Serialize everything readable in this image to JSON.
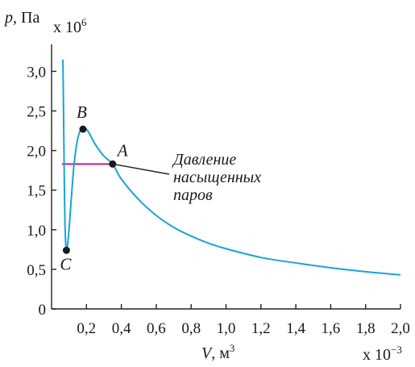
{
  "chart_data": {
    "type": "line",
    "y_label_var": "p",
    "y_label_unit": "Па",
    "y_multiplier_base": "x 10",
    "y_multiplier_exp": "6",
    "x_label_var": "V",
    "x_label_unit": "м",
    "x_label_unit_exp": "3",
    "x_multiplier_base": "x 10",
    "x_multiplier_exp": "−3",
    "xlim": [
      0,
      2.0
    ],
    "ylim": [
      0,
      3.3
    ],
    "x_ticks": [
      {
        "value": 0.2,
        "label": "0,2"
      },
      {
        "value": 0.4,
        "label": "0,4"
      },
      {
        "value": 0.6,
        "label": "0,6"
      },
      {
        "value": 0.8,
        "label": "0,8"
      },
      {
        "value": 1.0,
        "label": "1,0"
      },
      {
        "value": 1.2,
        "label": "1,2"
      },
      {
        "value": 1.4,
        "label": "1,4"
      },
      {
        "value": 1.6,
        "label": "1,6"
      },
      {
        "value": 1.8,
        "label": "1,8"
      },
      {
        "value": 2.0,
        "label": "2,0"
      }
    ],
    "y_ticks": [
      {
        "value": 0,
        "label": "0"
      },
      {
        "value": 0.5,
        "label": "0,5"
      },
      {
        "value": 1.0,
        "label": "1,0"
      },
      {
        "value": 1.5,
        "label": "1,5"
      },
      {
        "value": 2.0,
        "label": "2,0"
      },
      {
        "value": 2.5,
        "label": "2,5"
      },
      {
        "value": 3.0,
        "label": "3,0"
      }
    ],
    "series": [
      {
        "color": "#1aa3d9",
        "points": [
          [
            0.065,
            3.15
          ],
          [
            0.068,
            2.6
          ],
          [
            0.071,
            2.0
          ],
          [
            0.074,
            1.45
          ],
          [
            0.077,
            1.05
          ],
          [
            0.081,
            0.82
          ],
          [
            0.085,
            0.74
          ],
          [
            0.09,
            0.78
          ],
          [
            0.1,
            1.0
          ],
          [
            0.115,
            1.45
          ],
          [
            0.13,
            1.85
          ],
          [
            0.15,
            2.15
          ],
          [
            0.17,
            2.27
          ],
          [
            0.19,
            2.28
          ],
          [
            0.21,
            2.24
          ],
          [
            0.25,
            2.08
          ],
          [
            0.3,
            1.93
          ],
          [
            0.35,
            1.83
          ],
          [
            0.4,
            1.64
          ],
          [
            0.5,
            1.38
          ],
          [
            0.6,
            1.18
          ],
          [
            0.7,
            1.03
          ],
          [
            0.8,
            0.92
          ],
          [
            0.9,
            0.83
          ],
          [
            1.0,
            0.76
          ],
          [
            1.2,
            0.65
          ],
          [
            1.4,
            0.58
          ],
          [
            1.6,
            0.52
          ],
          [
            1.8,
            0.47
          ],
          [
            2.0,
            0.43
          ]
        ]
      }
    ],
    "saturation_line": {
      "color": "#d4148c",
      "x": [
        0.06,
        0.35
      ],
      "y": 1.83
    },
    "points": [
      {
        "name": "A",
        "x": 0.35,
        "y": 1.83
      },
      {
        "name": "B",
        "x": 0.18,
        "y": 2.27
      },
      {
        "name": "C",
        "x": 0.085,
        "y": 0.74
      }
    ],
    "annotation_lines": [
      "Давление",
      "насыщенных",
      "паров"
    ]
  }
}
